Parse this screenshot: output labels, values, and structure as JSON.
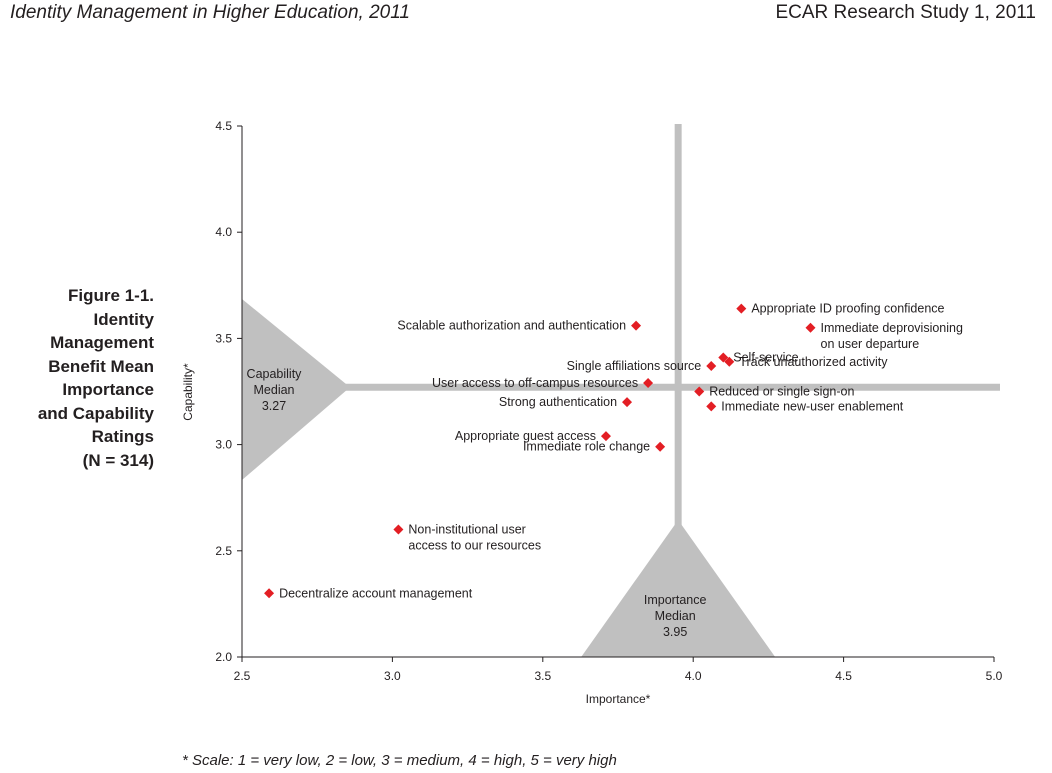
{
  "header": {
    "left": "Identity Management in Higher Education, 2011",
    "right": "ECAR Research Study 1, 2011"
  },
  "figure": {
    "caption": "Figure 1-1.\nIdentity\nManagement\nBenefit Mean\nImportance\nand Capability\nRatings\n(N = 314)"
  },
  "footnote": "* Scale: 1 = very low, 2 = low, 3 = medium, 4 = high, 5 = very high",
  "chart_data": {
    "type": "scatter",
    "title": "",
    "xlabel": "Importance*",
    "ylabel": "Capability*",
    "xlim": [
      2.5,
      5.0
    ],
    "ylim": [
      2.0,
      4.5
    ],
    "xticks": [
      "2.5",
      "3.0",
      "3.5",
      "4.0",
      "4.5",
      "5.0"
    ],
    "yticks": [
      "2.0",
      "2.5",
      "3.0",
      "3.5",
      "4.0",
      "4.5"
    ],
    "grid": false,
    "marker_color": "#e31e24",
    "median_color": "#c0c0c0",
    "importance_median": {
      "value": 3.95,
      "label_lines": [
        "Importance",
        "Median",
        "3.95"
      ]
    },
    "capability_median": {
      "value": 3.27,
      "label_lines": [
        "Capability",
        "Median",
        "3.27"
      ]
    },
    "points": [
      {
        "x": 4.16,
        "y": 3.64,
        "label_lines": [
          "Appropriate ID  proofing confidence"
        ],
        "anchor": "start"
      },
      {
        "x": 4.39,
        "y": 3.55,
        "label_lines": [
          "Immediate deprovisioning",
          "on user departure"
        ],
        "anchor": "start"
      },
      {
        "x": 3.81,
        "y": 3.56,
        "label_lines": [
          "Scalable authorization and authentication"
        ],
        "anchor": "end"
      },
      {
        "x": 4.1,
        "y": 3.41,
        "label_lines": [
          "Self-service"
        ],
        "anchor": "start"
      },
      {
        "x": 4.06,
        "y": 3.37,
        "label_lines": [
          "Single affiliations source"
        ],
        "anchor": "end"
      },
      {
        "x": 4.12,
        "y": 3.39,
        "label_lines": [
          "Track unauthorized activity"
        ],
        "anchor": "start"
      },
      {
        "x": 3.85,
        "y": 3.29,
        "label_lines": [
          "User access to off-campus resources"
        ],
        "anchor": "end"
      },
      {
        "x": 4.02,
        "y": 3.25,
        "label_lines": [
          "Reduced or single sign-on"
        ],
        "anchor": "start"
      },
      {
        "x": 3.78,
        "y": 3.2,
        "label_lines": [
          "Strong authentication"
        ],
        "anchor": "end"
      },
      {
        "x": 4.06,
        "y": 3.18,
        "label_lines": [
          "Immediate new-user enablement"
        ],
        "anchor": "start"
      },
      {
        "x": 3.71,
        "y": 3.04,
        "label_lines": [
          "Appropriate guest access"
        ],
        "anchor": "end"
      },
      {
        "x": 3.89,
        "y": 2.99,
        "label_lines": [
          "Immediate role change"
        ],
        "anchor": "end"
      },
      {
        "x": 3.02,
        "y": 2.6,
        "label_lines": [
          "Non-institutional user",
          "access to our resources"
        ],
        "anchor": "start"
      },
      {
        "x": 2.59,
        "y": 2.3,
        "label_lines": [
          "Decentralize account management"
        ],
        "anchor": "start"
      }
    ]
  }
}
